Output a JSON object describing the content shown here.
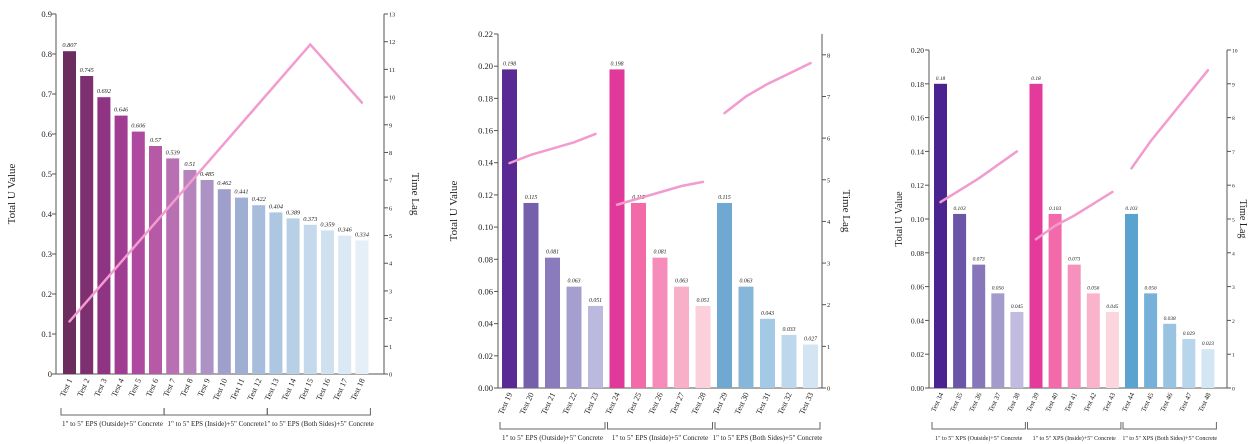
{
  "chart_data": [
    {
      "type": "bar",
      "ylabel": "Total U Value",
      "y2label": "Time Lag",
      "ylim": [
        0,
        0.9
      ],
      "yticks": [
        "0",
        "0.1",
        "0.2",
        "0.3",
        "0.4",
        "0.5",
        "0.6",
        "0.7",
        "0.8",
        "0.9"
      ],
      "y2lim": [
        0,
        13
      ],
      "y2ticks": [
        "0",
        "1",
        "2",
        "3",
        "4",
        "5",
        "6",
        "7",
        "8",
        "9",
        "10",
        "11",
        "12",
        "13"
      ],
      "categories": [
        "Test 1",
        "Test 2",
        "Test 3",
        "Test 4",
        "Test 5",
        "Test 6",
        "Test 7",
        "Test 8",
        "Test 9",
        "Test 10",
        "Test 11",
        "Test 12",
        "Test 13",
        "Test 14",
        "Test 15",
        "Test 16",
        "Test 17",
        "Test 18"
      ],
      "values": [
        0.807,
        0.745,
        0.692,
        0.646,
        0.606,
        0.57,
        0.539,
        0.51,
        0.485,
        0.462,
        0.441,
        0.422,
        0.404,
        0.389,
        0.373,
        0.359,
        0.346,
        0.334
      ],
      "value_labels": [
        "0.807",
        "0.745",
        "0.692",
        "0.646",
        "0.606",
        "0.57",
        "0.539",
        "0.51",
        "0.485",
        "0.462",
        "0.441",
        "0.422",
        "0.404",
        "0.389",
        "0.373",
        "0.359",
        "0.346",
        "0.334"
      ],
      "colors": [
        "#6b2d5e",
        "#7d2f70",
        "#8f3383",
        "#a03c92",
        "#ad4aa0",
        "#b65aa8",
        "#b970b2",
        "#b783bd",
        "#ac92c5",
        "#9f9fcb",
        "#9fafd3",
        "#a6bddc",
        "#adc7e2",
        "#b8d0e6",
        "#c4d9eb",
        "#cfe1ef",
        "#dae9f3",
        "#e4eff7"
      ],
      "groups": [
        {
          "label": "1\" to 5\" EPS (Outside)+5\" Concrete",
          "start": 0,
          "end": 5
        },
        {
          "label": "1\" to 5\" EPS (Inside)+5\" Concrete",
          "start": 6,
          "end": 11
        },
        {
          "label": "1\" to 5\" EPS (Both Sides)+5\" Concrete",
          "start": 12,
          "end": 17
        }
      ],
      "time_lag": [
        {
          "x": [
            0,
            14,
            17
          ],
          "y": [
            1.9,
            11.9,
            9.8
          ]
        }
      ]
    },
    {
      "type": "bar",
      "ylabel": "Total U Value",
      "y2label": "Time Lag",
      "ylim": [
        0,
        0.22
      ],
      "yticks": [
        "0.00",
        "0.02",
        "0.04",
        "0.06",
        "0.08",
        "0.10",
        "0.12",
        "0.14",
        "0.16",
        "0.18",
        "0.20",
        "0.22"
      ],
      "y2lim": [
        0,
        8.5
      ],
      "y2ticks": [
        "0",
        "1",
        "2",
        "3",
        "4",
        "5",
        "6",
        "7",
        "8"
      ],
      "categories": [
        "Test 19",
        "Test 20",
        "Test 21",
        "Test 22",
        "Test 23",
        "Test 24",
        "Test 25",
        "Test 26",
        "Test 27",
        "Test 28",
        "Test 29",
        "Test 30",
        "Test 31",
        "Test 32",
        "Test 33"
      ],
      "values": [
        0.198,
        0.115,
        0.081,
        0.063,
        0.051,
        0.198,
        0.115,
        0.081,
        0.063,
        0.051,
        0.115,
        0.063,
        0.043,
        0.033,
        0.027
      ],
      "value_labels": [
        "0.198",
        "0.115",
        "0.081",
        "0.063",
        "0.051",
        "0.198",
        "0.115",
        "0.081",
        "0.063",
        "0.051",
        "0.115",
        "0.063",
        "0.043",
        "0.033",
        "0.027"
      ],
      "colors": [
        "#5a2a94",
        "#7560ac",
        "#8a7cbc",
        "#a59fd0",
        "#bcb9de",
        "#e0399a",
        "#f26aa8",
        "#f58cb9",
        "#f8b0c8",
        "#fbd0da",
        "#6fa9d2",
        "#86b7db",
        "#a3c9e4",
        "#bdd8ec",
        "#d3e5f3"
      ],
      "groups": [
        {
          "label": "1\" to 5\" EPS (Outside)+5\" Concrete",
          "start": 0,
          "end": 4
        },
        {
          "label": "1\" to 5\" EPS (Inside)+5\" Concrete",
          "start": 5,
          "end": 9
        },
        {
          "label": "1\" to 5\" EPS (Both Sides)+5\" Concrete",
          "start": 10,
          "end": 14
        }
      ],
      "time_lag": [
        {
          "x": [
            0,
            1,
            2,
            3,
            4
          ],
          "y": [
            5.4,
            5.6,
            5.75,
            5.9,
            6.1
          ]
        },
        {
          "x": [
            5,
            6,
            7,
            8,
            9
          ],
          "y": [
            4.4,
            4.55,
            4.7,
            4.85,
            4.95
          ]
        },
        {
          "x": [
            10,
            11,
            12,
            13,
            14
          ],
          "y": [
            6.6,
            7.0,
            7.3,
            7.55,
            7.8
          ]
        }
      ]
    },
    {
      "type": "bar",
      "ylabel": "Total U Value",
      "y2label": "Time Lag",
      "ylim": [
        0,
        0.2
      ],
      "yticks": [
        "0.00",
        "0.02",
        "0.04",
        "0.06",
        "0.08",
        "0.10",
        "0.12",
        "0.14",
        "0.16",
        "0.18",
        "0.20"
      ],
      "y2lim": [
        0,
        10
      ],
      "y2ticks": [
        "0",
        "1",
        "2",
        "3",
        "4",
        "5",
        "6",
        "7",
        "8",
        "9",
        "10"
      ],
      "categories": [
        "Test 34",
        "Test 35",
        "Test 36",
        "Test 37",
        "Test 38",
        "Test 39",
        "Test 40",
        "Test 41",
        "Test 42",
        "Test 43",
        "Test 44",
        "Test 45",
        "Test 46",
        "Test 47",
        "Test 48"
      ],
      "values": [
        0.18,
        0.103,
        0.073,
        0.056,
        0.045,
        0.18,
        0.103,
        0.073,
        0.056,
        0.045,
        0.103,
        0.056,
        0.038,
        0.029,
        0.023
      ],
      "value_labels": [
        "0.18",
        "0.103",
        "0.073",
        "0.056",
        "0.045",
        "0.18",
        "0.103",
        "0.073",
        "0.056",
        "0.045",
        "0.103",
        "0.056",
        "0.038",
        "0.029",
        "0.023"
      ],
      "colors": [
        "#4b2390",
        "#6a55a8",
        "#8777ba",
        "#a49bcd",
        "#c0bbdf",
        "#e43a9c",
        "#f36aab",
        "#f690bd",
        "#f9b4cc",
        "#fcd6de",
        "#5aa2cf",
        "#75b1d8",
        "#98c4e2",
        "#b7d6ec",
        "#d3e6f4"
      ],
      "groups": [
        {
          "label": "1\" to 5\" XPS (Outside)+5\" Concrete",
          "start": 0,
          "end": 4
        },
        {
          "label": "1\" to 5\" XPS (Inside)+5\" Concrete",
          "start": 5,
          "end": 9
        },
        {
          "label": "1\" to 5\" XPS (Both Sides)+5\" Concrete",
          "start": 10,
          "end": 14
        }
      ],
      "time_lag": [
        {
          "x": [
            0,
            1,
            2,
            3,
            4
          ],
          "y": [
            5.5,
            5.85,
            6.2,
            6.6,
            7.0
          ]
        },
        {
          "x": [
            5,
            6,
            7,
            8,
            9
          ],
          "y": [
            4.4,
            4.8,
            5.1,
            5.45,
            5.8
          ]
        },
        {
          "x": [
            10,
            11,
            12,
            13,
            14
          ],
          "y": [
            6.5,
            7.3,
            8.0,
            8.7,
            9.4
          ]
        }
      ]
    }
  ]
}
